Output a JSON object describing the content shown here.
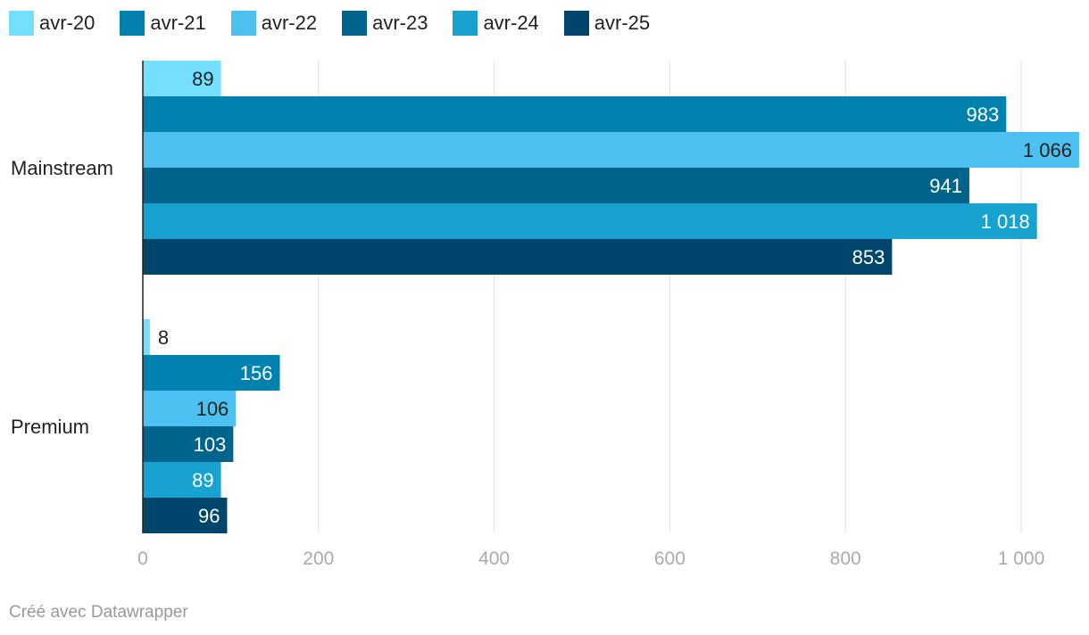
{
  "chart_data": {
    "type": "bar",
    "orientation": "horizontal",
    "categories": [
      "Mainstream",
      "Premium"
    ],
    "series": [
      {
        "name": "avr-20",
        "color": "#74dfff",
        "values": [
          89,
          8
        ]
      },
      {
        "name": "avr-21",
        "color": "#0181ad",
        "values": [
          983,
          156
        ]
      },
      {
        "name": "avr-22",
        "color": "#4cc1ef",
        "values": [
          1066,
          106
        ]
      },
      {
        "name": "avr-23",
        "color": "#00638c",
        "values": [
          941,
          103
        ]
      },
      {
        "name": "avr-24",
        "color": "#17a2cf",
        "values": [
          1018,
          89
        ]
      },
      {
        "name": "avr-25",
        "color": "#00456c",
        "values": [
          853,
          96
        ]
      }
    ],
    "xlim": [
      0,
      1066
    ],
    "xticks": [
      0,
      200,
      400,
      600,
      800,
      1000
    ],
    "xtick_labels": [
      "0",
      "200",
      "400",
      "600",
      "800",
      "1 000"
    ],
    "grid": true,
    "legend": "top-left"
  },
  "footer": "Créé avec Datawrapper"
}
